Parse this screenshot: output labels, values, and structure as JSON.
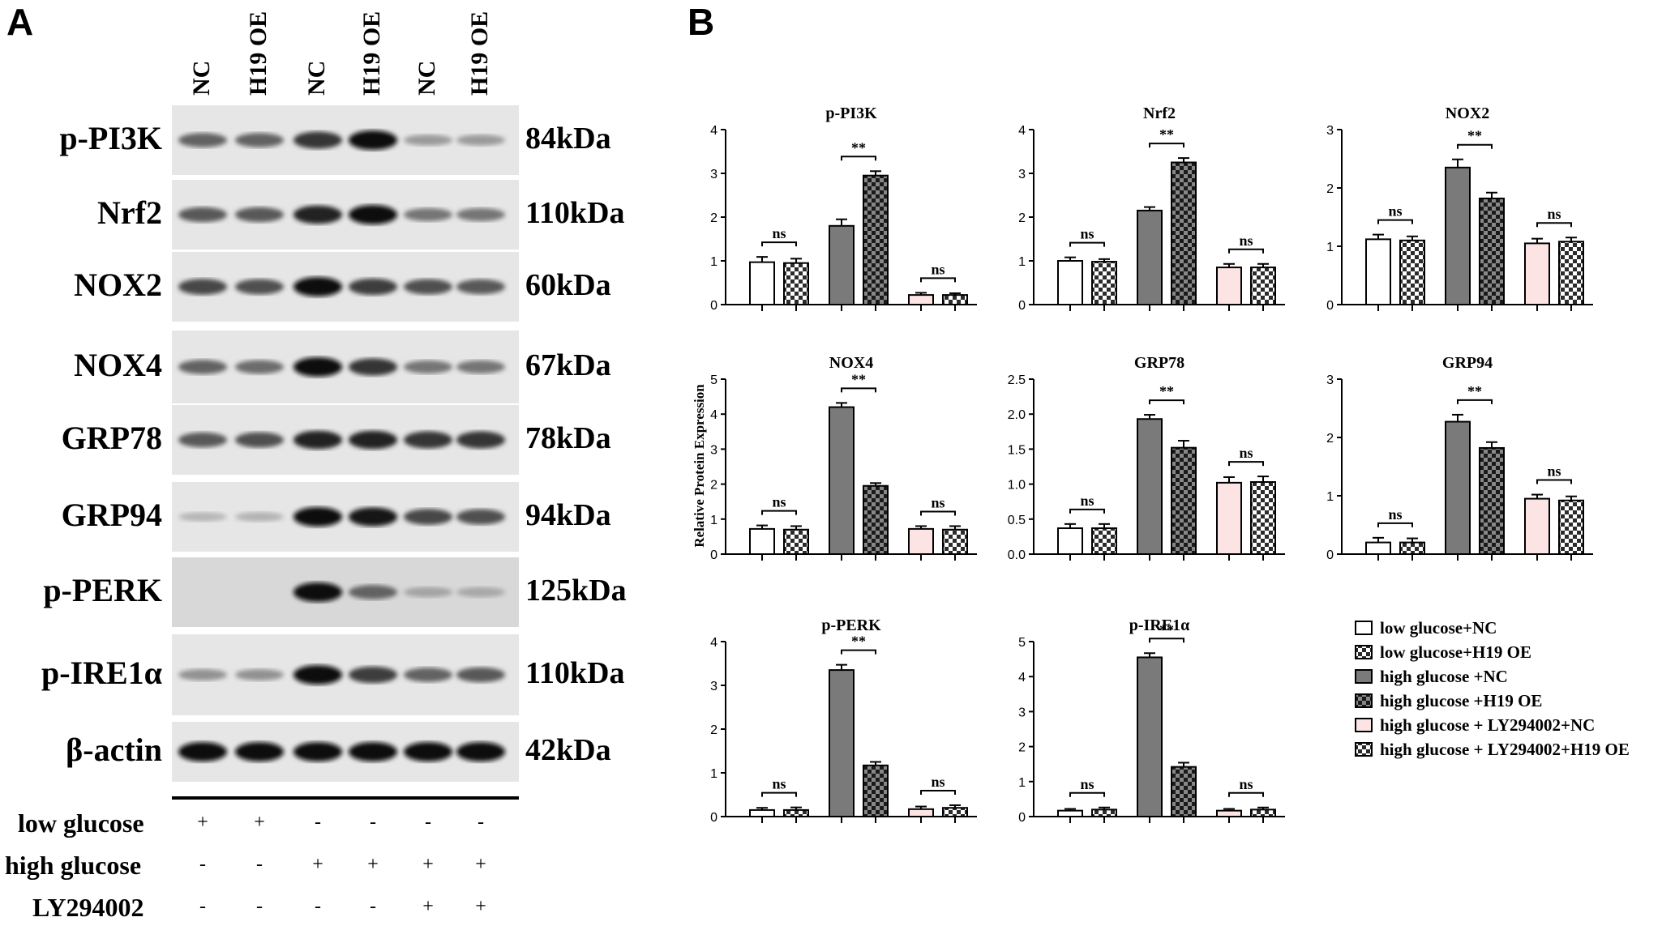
{
  "panels": {
    "a": "A",
    "b": "B"
  },
  "western_blot": {
    "lanes": [
      "NC",
      "H19 OE",
      "NC",
      "H19 OE",
      "NC",
      "H19 OE"
    ],
    "rows": [
      {
        "protein": "p-PI3K",
        "kda": "84kDa",
        "intensities": [
          0.55,
          0.55,
          0.8,
          1.0,
          0.25,
          0.25
        ]
      },
      {
        "protein": "Nrf2",
        "kda": "110kDa",
        "intensities": [
          0.6,
          0.6,
          0.9,
          1.0,
          0.45,
          0.45
        ]
      },
      {
        "protein": "NOX2",
        "kda": "60kDa",
        "intensities": [
          0.7,
          0.65,
          1.0,
          0.75,
          0.65,
          0.6
        ]
      },
      {
        "protein": "NOX4",
        "kda": "67kDa",
        "intensities": [
          0.55,
          0.5,
          1.0,
          0.8,
          0.45,
          0.45
        ]
      },
      {
        "protein": "GRP78",
        "kda": "78kDa",
        "intensities": [
          0.6,
          0.65,
          0.9,
          0.9,
          0.8,
          0.8
        ]
      },
      {
        "protein": "GRP94",
        "kda": "94kDa",
        "intensities": [
          0.1,
          0.12,
          1.0,
          0.95,
          0.7,
          0.65
        ]
      },
      {
        "protein": "p-PERK",
        "kda": "125kDa",
        "intensities": [
          0.0,
          0.0,
          1.0,
          0.55,
          0.2,
          0.18
        ]
      },
      {
        "protein": "p-IRE1α",
        "kda": "110kDa",
        "intensities": [
          0.3,
          0.3,
          1.0,
          0.75,
          0.55,
          0.6
        ]
      },
      {
        "protein": "β-actin",
        "kda": "42kDa",
        "intensities": [
          1.0,
          1.0,
          1.0,
          1.0,
          1.0,
          1.0
        ]
      }
    ],
    "conditions": [
      {
        "label": "low glucose",
        "values": [
          "+",
          "+",
          "-",
          "-",
          "-",
          "-"
        ]
      },
      {
        "label": "high glucose",
        "values": [
          "-",
          "-",
          "+",
          "+",
          "+",
          "+"
        ]
      },
      {
        "label": "LY294002",
        "values": [
          "-",
          "-",
          "-",
          "-",
          "+",
          "+"
        ]
      }
    ]
  },
  "colors": {
    "low_glucose_nc": "#ffffff",
    "high_glucose_nc": "#7a7a7a",
    "ly_nc": "#fde4e4",
    "checker_dark": "#2b2b2b"
  },
  "chart_data": [
    {
      "type": "bar",
      "title": "p-PI3K",
      "ylim": [
        0,
        4
      ],
      "yticks": [
        "0",
        "1",
        "2",
        "3",
        "4"
      ],
      "values": [
        0.97,
        0.95,
        1.8,
        2.95,
        0.22,
        0.22
      ],
      "errors": [
        0.12,
        0.1,
        0.15,
        0.1,
        0.05,
        0.04
      ],
      "significance": [
        "ns",
        "**",
        "ns"
      ]
    },
    {
      "type": "bar",
      "title": "Nrf2",
      "ylim": [
        0,
        4
      ],
      "yticks": [
        "0",
        "1",
        "2",
        "3",
        "4"
      ],
      "values": [
        1.0,
        0.98,
        2.15,
        3.25,
        0.85,
        0.85
      ],
      "errors": [
        0.08,
        0.06,
        0.08,
        0.1,
        0.08,
        0.08
      ],
      "significance": [
        "ns",
        "**",
        "ns"
      ]
    },
    {
      "type": "bar",
      "title": "NOX2",
      "ylim": [
        0,
        3
      ],
      "yticks": [
        "0",
        "1",
        "2",
        "3"
      ],
      "values": [
        1.12,
        1.1,
        2.35,
        1.82,
        1.05,
        1.08
      ],
      "errors": [
        0.08,
        0.07,
        0.14,
        0.1,
        0.08,
        0.07
      ],
      "significance": [
        "ns",
        "**",
        "ns"
      ]
    },
    {
      "type": "bar",
      "title": "NOX4",
      "ylim": [
        0,
        5
      ],
      "yticks": [
        "0",
        "1",
        "2",
        "3",
        "4",
        "5"
      ],
      "values": [
        0.72,
        0.7,
        4.2,
        1.95,
        0.72,
        0.7
      ],
      "errors": [
        0.1,
        0.1,
        0.12,
        0.08,
        0.08,
        0.1
      ],
      "significance": [
        "ns",
        "**",
        "ns"
      ]
    },
    {
      "type": "bar",
      "title": "GRP78",
      "ylim": [
        0,
        2.5
      ],
      "yticks": [
        "0.0",
        "0.5",
        "1.0",
        "1.5",
        "2.0",
        "2.5"
      ],
      "values": [
        0.37,
        0.37,
        1.93,
        1.52,
        1.02,
        1.03
      ],
      "errors": [
        0.06,
        0.06,
        0.06,
        0.1,
        0.08,
        0.08
      ],
      "significance": [
        "ns",
        "**",
        "ns"
      ]
    },
    {
      "type": "bar",
      "title": "GRP94",
      "ylim": [
        0,
        3
      ],
      "yticks": [
        "0",
        "1",
        "2",
        "3"
      ],
      "values": [
        0.2,
        0.2,
        2.27,
        1.82,
        0.95,
        0.92
      ],
      "errors": [
        0.08,
        0.07,
        0.12,
        0.1,
        0.07,
        0.07
      ],
      "significance": [
        "ns",
        "**",
        "ns"
      ]
    },
    {
      "type": "bar",
      "title": "p-PERK",
      "ylim": [
        0,
        4
      ],
      "yticks": [
        "0",
        "1",
        "2",
        "3",
        "4"
      ],
      "values": [
        0.15,
        0.15,
        3.35,
        1.17,
        0.17,
        0.2
      ],
      "errors": [
        0.05,
        0.06,
        0.12,
        0.08,
        0.06,
        0.06
      ],
      "significance": [
        "ns",
        "**",
        "ns"
      ]
    },
    {
      "type": "bar",
      "title": "p-IRE1α",
      "ylim": [
        0,
        5
      ],
      "yticks": [
        "0",
        "1",
        "2",
        "3",
        "4",
        "5"
      ],
      "values": [
        0.17,
        0.2,
        4.55,
        1.42,
        0.17,
        0.2
      ],
      "errors": [
        0.05,
        0.06,
        0.12,
        0.12,
        0.05,
        0.06
      ],
      "significance": [
        "ns",
        "**",
        "ns"
      ]
    }
  ],
  "ylabel": "Relative Protein Expression",
  "legend": [
    {
      "label": "low glucose+NC",
      "fill": "white"
    },
    {
      "label": "low glucose+H19 OE",
      "fill": "checker"
    },
    {
      "label": "high glucose +NC",
      "fill": "gray"
    },
    {
      "label": "high glucose +H19 OE",
      "fill": "checker"
    },
    {
      "label": "high glucose + LY294002+NC",
      "fill": "pink"
    },
    {
      "label": "high glucose + LY294002+H19 OE",
      "fill": "checker"
    }
  ]
}
